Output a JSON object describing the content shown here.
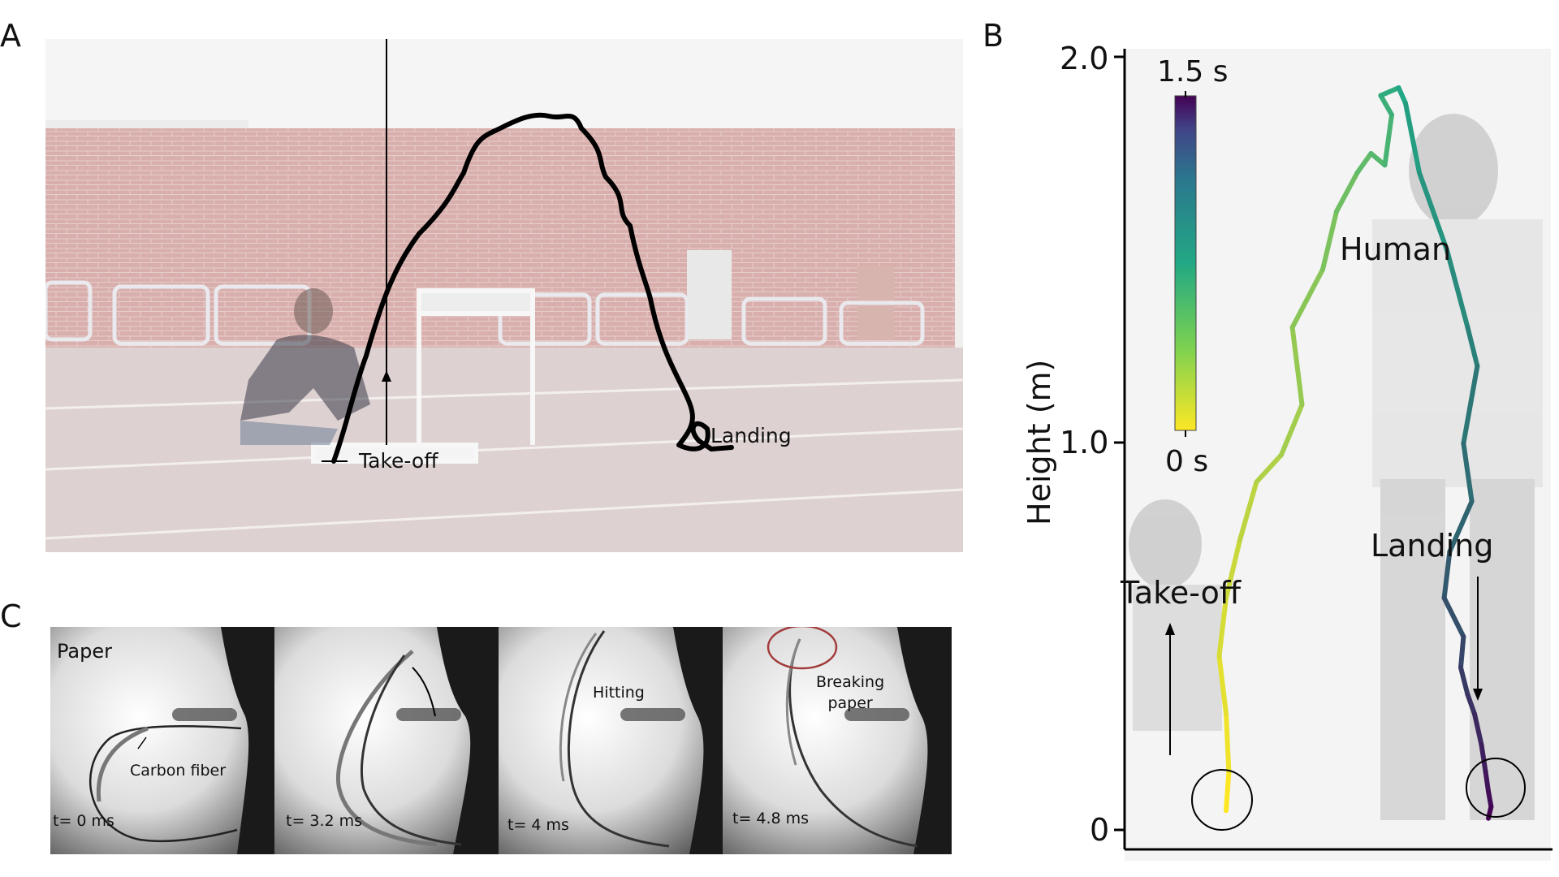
{
  "panels": {
    "a": {
      "letter": "A",
      "takeoff_label": "Take-off",
      "landing_label": "Landing"
    },
    "b": {
      "letter": "B",
      "ylabel": "Height (m)",
      "yticks": [
        "2.0",
        "1.0",
        "0"
      ],
      "colorbar_top": "1.5 s",
      "colorbar_bottom": "0 s",
      "human_label": "Human",
      "takeoff_label": "Take-off",
      "landing_label": "Landing"
    },
    "c": {
      "letter": "C",
      "paper_label": "Paper",
      "frames": [
        {
          "time": "t= 0 ms",
          "annotation": "Carbon fiber"
        },
        {
          "time": "t= 3.2 ms",
          "annotation": ""
        },
        {
          "time": "t= 4 ms",
          "annotation": "Hitting"
        },
        {
          "time": "t= 4.8 ms",
          "annotation": "Breaking\npaper"
        }
      ]
    }
  },
  "colors": {
    "photo_wall": "#c98e8a",
    "track": "#e3d8d6",
    "traj_start": "#fde725",
    "traj_end": "#440154"
  },
  "chart_data": {
    "type": "line",
    "ylabel": "Height (m)",
    "ylim": [
      0,
      2.0
    ],
    "series": [
      {
        "x": [
          0.0,
          0.02,
          0.0,
          -0.05,
          0.0,
          0.1,
          0.22,
          0.4,
          0.55,
          0.48,
          0.7,
          0.8,
          0.95,
          1.05,
          1.15,
          1.2,
          1.12,
          1.25,
          1.3,
          1.4,
          1.6,
          1.75,
          1.82,
          1.72,
          1.78,
          1.62,
          1.58,
          1.72,
          1.7,
          1.75,
          1.8,
          1.85,
          1.88,
          1.9,
          1.92,
          1.9
        ],
        "y": [
          0.05,
          0.15,
          0.3,
          0.45,
          0.6,
          0.75,
          0.9,
          0.97,
          1.1,
          1.3,
          1.45,
          1.6,
          1.7,
          1.75,
          1.72,
          1.85,
          1.9,
          1.92,
          1.88,
          1.7,
          1.5,
          1.3,
          1.2,
          1.0,
          0.85,
          0.72,
          0.6,
          0.5,
          0.42,
          0.35,
          0.3,
          0.22,
          0.15,
          0.1,
          0.06,
          0.03
        ]
      }
    ]
  }
}
